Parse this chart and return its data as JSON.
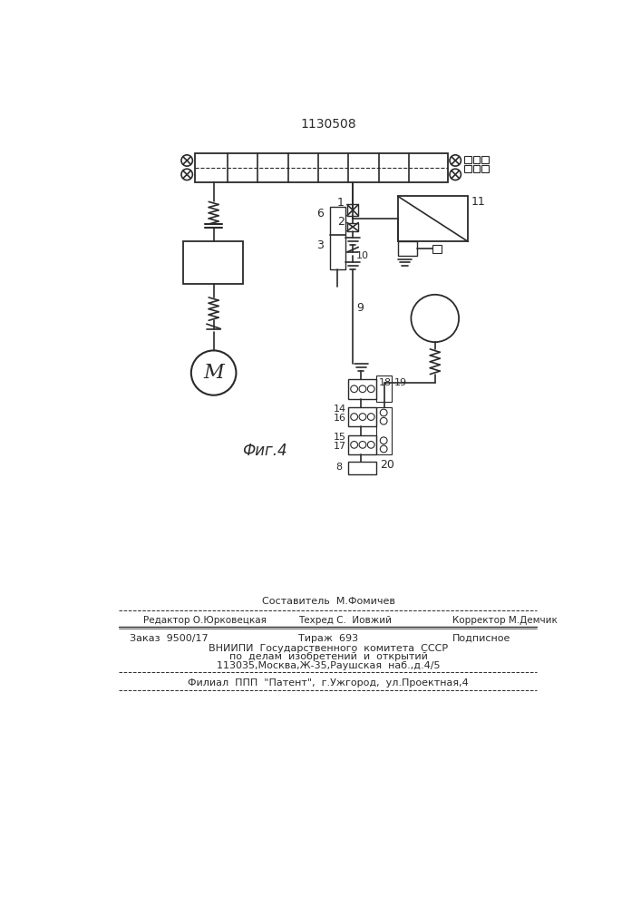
{
  "title": "1130508",
  "fig_label": "Фиг.4",
  "bg_color": "#ffffff",
  "line_color": "#2a2a2a",
  "footer": {
    "line1_center": "Составитель  М.Фомичев",
    "line2_left": "Редактор О.Юрковецкая",
    "line2_center": "Техред С.  Иовжий",
    "line2_right": "Корректор М.Демчик",
    "line3_left": "Заказ  9500/17",
    "line3_center": "Тираж  693",
    "line3_right": "Подписное",
    "line4": "ВНИИПИ  Государственного  комитета  СССР",
    "line5": "по  делам  изобретений  и  открытий",
    "line6": "113035,Москва,Ж-35,Раушская  наб.,д.4/5",
    "line7": "Филиал  ППП  \"Патент\",  г.Ужгород,  ул.Проектная,4"
  }
}
